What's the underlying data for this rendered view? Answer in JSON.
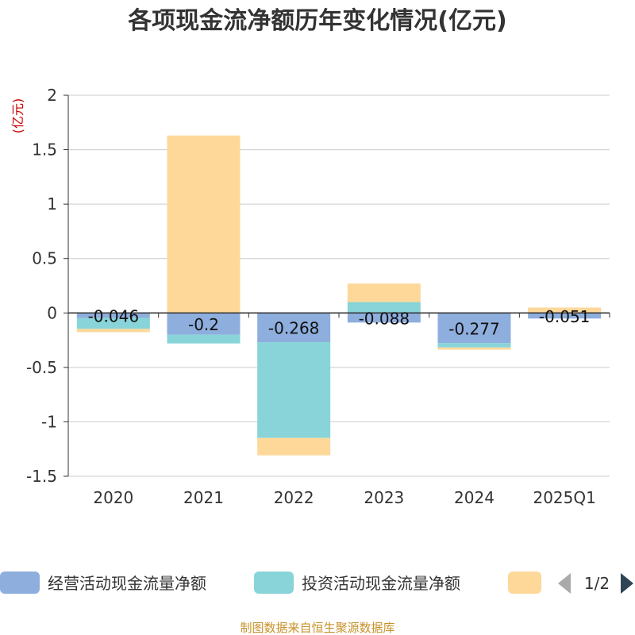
{
  "chart_data": {
    "type": "bar",
    "stacked": true,
    "title": "各项现金流净额历年变化情况(亿元)",
    "ylabel": "(亿元)",
    "xlabel": "",
    "categories": [
      "2020",
      "2021",
      "2022",
      "2023",
      "2024",
      "2025Q1"
    ],
    "ylim": [
      -1.5,
      2
    ],
    "yticks": [
      "2",
      "1.5",
      "1",
      "0.5",
      "0",
      "-0.5",
      "-1",
      "-1.5"
    ],
    "grid": true,
    "legend_position": "bottom",
    "series": [
      {
        "name": "经营活动现金流量净额",
        "color": "#8eaedd",
        "values": [
          -0.046,
          -0.2,
          -0.268,
          -0.088,
          -0.277,
          -0.051
        ],
        "labels": [
          "-0.046",
          "-0.2",
          "-0.268",
          "-0.088",
          "-0.277",
          "-0.051"
        ]
      },
      {
        "name": "投资活动现金流量净额",
        "color": "#88d4d8",
        "values": [
          -0.1,
          -0.08,
          -0.88,
          0.1,
          -0.04,
          0.0
        ]
      },
      {
        "name": "",
        "color": "#fdd899",
        "values": [
          -0.03,
          1.63,
          -0.16,
          0.17,
          -0.02,
          0.05
        ]
      }
    ]
  },
  "legend": {
    "page": "1/2"
  },
  "source": "制图数据来自恒生聚源数据库"
}
